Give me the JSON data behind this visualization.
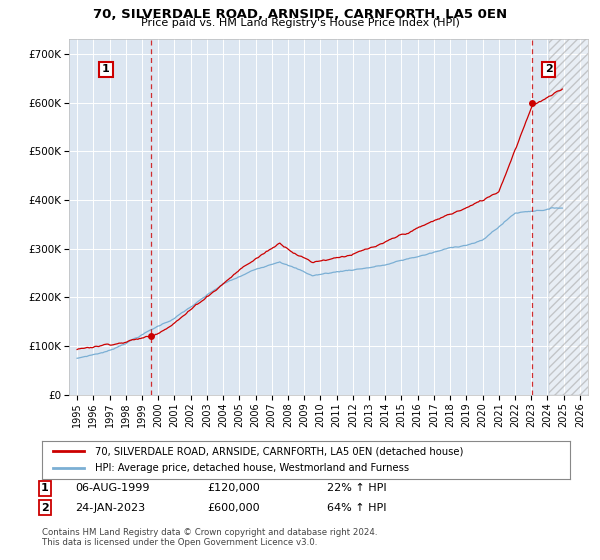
{
  "title": "70, SILVERDALE ROAD, ARNSIDE, CARNFORTH, LA5 0EN",
  "subtitle": "Price paid vs. HM Land Registry's House Price Index (HPI)",
  "property_label": "70, SILVERDALE ROAD, ARNSIDE, CARNFORTH, LA5 0EN (detached house)",
  "hpi_label": "HPI: Average price, detached house, Westmorland and Furness",
  "annotation1": {
    "label": "1",
    "date_str": "06-AUG-1999",
    "price_str": "£120,000",
    "hpi_str": "22% ↑ HPI",
    "x_year": 1999.583,
    "y_val": 120000
  },
  "annotation2": {
    "label": "2",
    "date_str": "24-JAN-2023",
    "price_str": "£600,000",
    "hpi_str": "64% ↑ HPI",
    "x_year": 2023.07,
    "y_val": 600000
  },
  "footer": "Contains HM Land Registry data © Crown copyright and database right 2024.\nThis data is licensed under the Open Government Licence v3.0.",
  "property_color": "#cc0000",
  "hpi_color": "#7bafd4",
  "background_color": "#dce6f1",
  "annotation_box_color": "#cc0000",
  "ylim": [
    0,
    730000
  ],
  "xlim_start": 1994.5,
  "xlim_end": 2026.5,
  "hatch_region_start": 2024.08,
  "yticks": [
    0,
    100000,
    200000,
    300000,
    400000,
    500000,
    600000,
    700000
  ],
  "ytick_labels": [
    "£0",
    "£100K",
    "£200K",
    "£300K",
    "£400K",
    "£500K",
    "£600K",
    "£700K"
  ],
  "xticks": [
    1995,
    1996,
    1997,
    1998,
    1999,
    2000,
    2001,
    2002,
    2003,
    2004,
    2005,
    2006,
    2007,
    2008,
    2009,
    2010,
    2011,
    2012,
    2013,
    2014,
    2015,
    2016,
    2017,
    2018,
    2019,
    2020,
    2021,
    2022,
    2023,
    2024,
    2025,
    2026
  ]
}
